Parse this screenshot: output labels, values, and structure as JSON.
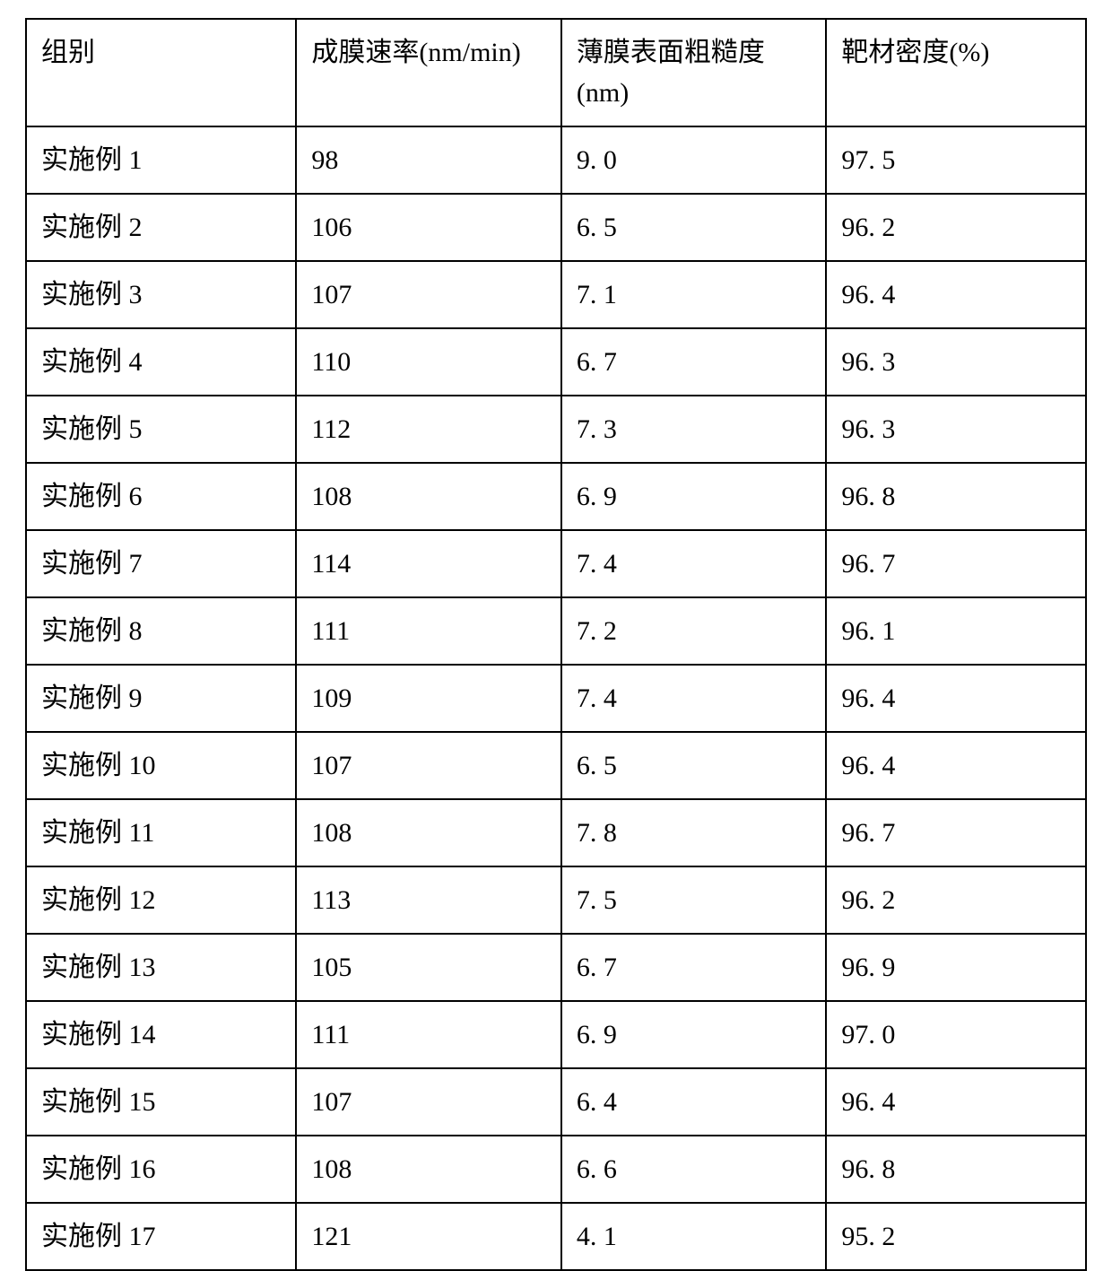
{
  "table": {
    "headers": {
      "group": "组别",
      "rate": "成膜速率(nm/min)",
      "roughness": "薄膜表面粗糙度(nm)",
      "density": "靶材密度(%)"
    },
    "rows": [
      {
        "group": "实施例 1",
        "rate": "98",
        "roughness": "9. 0",
        "density": "97. 5"
      },
      {
        "group": "实施例 2",
        "rate": "106",
        "roughness": "6. 5",
        "density": "96. 2"
      },
      {
        "group": "实施例 3",
        "rate": "107",
        "roughness": "7. 1",
        "density": "96. 4"
      },
      {
        "group": "实施例 4",
        "rate": "110",
        "roughness": "6. 7",
        "density": "96. 3"
      },
      {
        "group": "实施例 5",
        "rate": "112",
        "roughness": "7. 3",
        "density": "96. 3"
      },
      {
        "group": "实施例 6",
        "rate": "108",
        "roughness": "6. 9",
        "density": "96. 8"
      },
      {
        "group": "实施例 7",
        "rate": "114",
        "roughness": "7. 4",
        "density": "96. 7"
      },
      {
        "group": "实施例 8",
        "rate": "111",
        "roughness": "7. 2",
        "density": "96. 1"
      },
      {
        "group": "实施例 9",
        "rate": "109",
        "roughness": "7. 4",
        "density": "96. 4"
      },
      {
        "group": "实施例 10",
        "rate": "107",
        "roughness": "6. 5",
        "density": "96. 4"
      },
      {
        "group": "实施例 11",
        "rate": "108",
        "roughness": "7. 8",
        "density": "96. 7"
      },
      {
        "group": "实施例 12",
        "rate": "113",
        "roughness": "7. 5",
        "density": "96. 2"
      },
      {
        "group": "实施例 13",
        "rate": "105",
        "roughness": "6. 7",
        "density": "96. 9"
      },
      {
        "group": "实施例 14",
        "rate": "111",
        "roughness": "6. 9",
        "density": "97. 0"
      },
      {
        "group": "实施例 15",
        "rate": "107",
        "roughness": "6. 4",
        "density": "96. 4"
      },
      {
        "group": "实施例 16",
        "rate": "108",
        "roughness": "6. 6",
        "density": "96. 8"
      },
      {
        "group": "实施例 17",
        "rate": "121",
        "roughness": "4. 1",
        "density": "95. 2"
      }
    ]
  },
  "styling": {
    "border_color": "#000000",
    "border_width": 2,
    "background_color": "#ffffff",
    "text_color": "#000000",
    "font_size": 30,
    "font_family": "SimSun",
    "cell_padding_v": 14,
    "cell_padding_h": 16,
    "column_widths_pct": [
      25.5,
      25,
      25,
      24.5
    ]
  }
}
